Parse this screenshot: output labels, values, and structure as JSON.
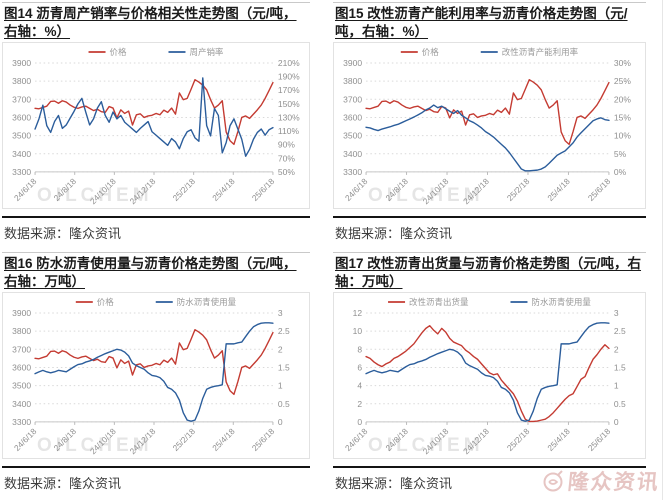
{
  "page": {
    "source_label": "数据来源：隆众资讯",
    "chart_watermark": "OILCHEM",
    "logo_watermark_text": "隆众资讯",
    "colors": {
      "price_red": "#c43b32",
      "series_blue": "#2b5d9b",
      "axis_text": "#8f8f8f",
      "grid": "#d9d9d9",
      "watermark_gray": "#b0b0b0"
    }
  },
  "chart_data": [
    {
      "type": "line",
      "title": "图14 沥青周产销率与价格相关性走势图（元/吨，右轴：%）",
      "x_ticks": [
        "24/6/18",
        "24/8/18",
        "24/10/18",
        "24/12/18",
        "25/2/18",
        "25/4/18",
        "25/6/18"
      ],
      "left_axis": {
        "min": 3300,
        "max": 3900,
        "ticks": [
          3900,
          3800,
          3700,
          3600,
          3500,
          3400,
          3300
        ],
        "suffix": ""
      },
      "right_axis": {
        "min": 50,
        "max": 210,
        "ticks": [
          210,
          190,
          170,
          150,
          130,
          110,
          90,
          70,
          50
        ],
        "suffix": "%"
      },
      "legend_position": "top-center",
      "grid": "dotted-horizontal",
      "series": [
        {
          "name": "价格",
          "axis": "left",
          "color": "#c43b32",
          "values": [
            3650,
            3648,
            3655,
            3662,
            3688,
            3690,
            3678,
            3692,
            3685,
            3668,
            3656,
            3650,
            3658,
            3662,
            3650,
            3638,
            3645,
            3632,
            3628,
            3660,
            3652,
            3598,
            3642,
            3622,
            3635,
            3558,
            3615,
            3620,
            3600,
            3608,
            3612,
            3622,
            3615,
            3640,
            3628,
            3652,
            3618,
            3735,
            3698,
            3705,
            3755,
            3808,
            3795,
            3778,
            3752,
            3698,
            3652,
            3668,
            3692,
            3520,
            3472,
            3452,
            3522,
            3600,
            3608,
            3595,
            3618,
            3642,
            3668,
            3705,
            3748,
            3792
          ]
        },
        {
          "name": "周产销率",
          "axis": "right",
          "color": "#2b5d9b",
          "values": [
            113,
            128,
            148,
            118,
            108,
            124,
            133,
            114,
            119,
            129,
            139,
            150,
            158,
            138,
            119,
            128,
            144,
            153,
            133,
            123,
            138,
            128,
            133,
            123,
            118,
            113,
            108,
            114,
            119,
            124,
            109,
            104,
            99,
            94,
            89,
            99,
            94,
            84,
            99,
            109,
            112,
            100,
            95,
            188,
            118,
            103,
            143,
            133,
            78,
            93,
            118,
            128,
            113,
            98,
            73,
            83,
            98,
            108,
            113,
            104,
            112,
            115
          ]
        }
      ]
    },
    {
      "type": "line",
      "title": "图15  改性沥青产能利用率与沥青价格走势图（元/吨，右轴：%）",
      "x_ticks": [
        "24/6/18",
        "24/8/18",
        "24/10/18",
        "24/12/18",
        "25/2/18",
        "25/4/18",
        "25/6/18"
      ],
      "left_axis": {
        "min": 3300,
        "max": 3900,
        "ticks": [
          3900,
          3800,
          3700,
          3600,
          3500,
          3400,
          3300
        ],
        "suffix": ""
      },
      "right_axis": {
        "min": 0,
        "max": 30,
        "ticks": [
          30,
          25,
          20,
          15,
          10,
          5,
          0
        ],
        "suffix": "%"
      },
      "legend_position": "top-center",
      "grid": "dotted-horizontal",
      "series": [
        {
          "name": "价格",
          "axis": "left",
          "color": "#c43b32",
          "values": [
            3650,
            3648,
            3655,
            3662,
            3688,
            3690,
            3678,
            3692,
            3685,
            3668,
            3656,
            3650,
            3658,
            3662,
            3650,
            3638,
            3645,
            3632,
            3628,
            3660,
            3652,
            3598,
            3642,
            3622,
            3635,
            3558,
            3615,
            3620,
            3600,
            3608,
            3612,
            3622,
            3615,
            3640,
            3628,
            3652,
            3618,
            3735,
            3698,
            3705,
            3755,
            3808,
            3795,
            3778,
            3752,
            3698,
            3652,
            3668,
            3692,
            3520,
            3472,
            3452,
            3522,
            3600,
            3608,
            3595,
            3618,
            3642,
            3668,
            3705,
            3748,
            3792
          ]
        },
        {
          "name": "改性沥青产能利用率",
          "axis": "right",
          "color": "#2b5d9b",
          "values": [
            12.3,
            12.1,
            11.7,
            11.4,
            11.8,
            12.1,
            12.4,
            12.8,
            13.1,
            13.6,
            14.1,
            14.6,
            15.1,
            15.7,
            16.3,
            17.1,
            17.6,
            18.4,
            17.7,
            18.1,
            17.4,
            16.7,
            16.1,
            16.9,
            15.6,
            14.9,
            14.1,
            13.6,
            12.9,
            12.1,
            11.1,
            10.4,
            9.6,
            8.6,
            7.6,
            6.6,
            5.3,
            3.8,
            2.3,
            0.8,
            0.3,
            0.3,
            0.4,
            0.5,
            0.8,
            1.4,
            2.4,
            3.5,
            4.6,
            5.2,
            5.8,
            6.9,
            8.0,
            9.6,
            10.8,
            11.9,
            13.0,
            14.1,
            14.6,
            14.9,
            14.4,
            14.2
          ]
        }
      ]
    },
    {
      "type": "line",
      "title": "图16 防水沥青使用量与沥青价格走势图（元/吨，右轴：万吨）",
      "x_ticks": [
        "24/6/18",
        "24/8/18",
        "24/10/18",
        "24/12/18",
        "25/2/18",
        "25/4/18",
        "25/6/18"
      ],
      "left_axis": {
        "min": 3300,
        "max": 3900,
        "ticks": [
          3900,
          3800,
          3700,
          3600,
          3500,
          3400,
          3300
        ],
        "suffix": ""
      },
      "right_axis": {
        "min": 0,
        "max": 3,
        "ticks": [
          3,
          2.5,
          2,
          1.5,
          1,
          0.5,
          0
        ],
        "suffix": ""
      },
      "legend_position": "top-center",
      "grid": "dotted-horizontal",
      "series": [
        {
          "name": "价格",
          "axis": "left",
          "color": "#c43b32",
          "values": [
            3650,
            3648,
            3655,
            3662,
            3688,
            3690,
            3678,
            3692,
            3685,
            3668,
            3656,
            3650,
            3658,
            3662,
            3650,
            3638,
            3645,
            3632,
            3628,
            3660,
            3652,
            3598,
            3642,
            3622,
            3635,
            3558,
            3615,
            3620,
            3600,
            3608,
            3612,
            3622,
            3615,
            3640,
            3628,
            3652,
            3618,
            3735,
            3698,
            3705,
            3755,
            3808,
            3795,
            3778,
            3752,
            3698,
            3652,
            3668,
            3692,
            3520,
            3472,
            3452,
            3522,
            3600,
            3608,
            3595,
            3618,
            3642,
            3668,
            3705,
            3748,
            3792
          ]
        },
        {
          "name": "防水沥青使用量",
          "axis": "right",
          "color": "#2b5d9b",
          "values": [
            1.33,
            1.38,
            1.42,
            1.38,
            1.35,
            1.38,
            1.42,
            1.4,
            1.38,
            1.45,
            1.52,
            1.58,
            1.6,
            1.65,
            1.68,
            1.72,
            1.78,
            1.83,
            1.88,
            1.92,
            1.96,
            2.0,
            1.98,
            1.92,
            1.82,
            1.62,
            1.55,
            1.5,
            1.45,
            1.35,
            1.28,
            1.26,
            1.22,
            1.12,
            0.95,
            0.9,
            0.8,
            0.6,
            0.25,
            0.05,
            0.02,
            0.05,
            0.3,
            0.65,
            0.9,
            0.95,
            0.98,
            1.0,
            1.02,
            2.15,
            2.15,
            2.15,
            2.18,
            2.2,
            2.35,
            2.5,
            2.62,
            2.68,
            2.72,
            2.73,
            2.73,
            2.72
          ]
        }
      ]
    },
    {
      "type": "line",
      "title": "图17 改性沥青出货量与沥青价格走势图（元/吨，右轴：万吨）",
      "x_ticks": [
        "24/6/18",
        "24/8/18",
        "24/10/18",
        "24/12/18",
        "25/2/18",
        "25/4/18",
        "25/6/18"
      ],
      "left_axis": {
        "min": 0,
        "max": 12,
        "ticks": [
          12,
          10,
          8,
          6,
          4,
          2,
          0
        ],
        "suffix": ""
      },
      "right_axis": {
        "min": 0,
        "max": 3,
        "ticks": [
          3,
          2.5,
          2,
          1.5,
          1,
          0.5,
          0
        ],
        "suffix": ""
      },
      "legend_position": "top-center",
      "grid": "dotted-horizontal",
      "series": [
        {
          "name": "改性沥青出货量",
          "axis": "left",
          "color": "#c43b32",
          "values": [
            7.2,
            7.0,
            6.6,
            6.3,
            6.1,
            6.4,
            6.6,
            7.0,
            7.2,
            7.5,
            7.8,
            8.2,
            8.6,
            9.2,
            9.8,
            10.3,
            10.6,
            10.1,
            9.7,
            10.3,
            9.9,
            9.2,
            8.8,
            8.6,
            8.4,
            7.9,
            7.6,
            7.2,
            6.9,
            6.4,
            5.9,
            5.4,
            5.2,
            5.3,
            4.6,
            4.1,
            3.6,
            3.1,
            2.3,
            1.2,
            0.3,
            0.05,
            0.05,
            0.1,
            0.2,
            0.3,
            0.6,
            1.0,
            1.5,
            2.0,
            2.5,
            2.9,
            3.1,
            3.9,
            4.7,
            5.0,
            6.0,
            6.9,
            7.4,
            8.0,
            8.5,
            8.1
          ]
        },
        {
          "name": "防水沥青使用量",
          "axis": "right",
          "color": "#2b5d9b",
          "values": [
            1.33,
            1.38,
            1.42,
            1.38,
            1.35,
            1.38,
            1.42,
            1.4,
            1.38,
            1.45,
            1.52,
            1.58,
            1.6,
            1.65,
            1.68,
            1.72,
            1.78,
            1.83,
            1.88,
            1.92,
            1.96,
            2.0,
            1.98,
            1.92,
            1.82,
            1.62,
            1.55,
            1.5,
            1.45,
            1.35,
            1.28,
            1.26,
            1.22,
            1.12,
            0.95,
            0.9,
            0.8,
            0.6,
            0.25,
            0.05,
            0.02,
            0.05,
            0.3,
            0.65,
            0.9,
            0.95,
            0.98,
            1.0,
            1.02,
            2.15,
            2.15,
            2.15,
            2.18,
            2.2,
            2.35,
            2.5,
            2.62,
            2.68,
            2.72,
            2.73,
            2.73,
            2.72
          ]
        }
      ]
    }
  ]
}
